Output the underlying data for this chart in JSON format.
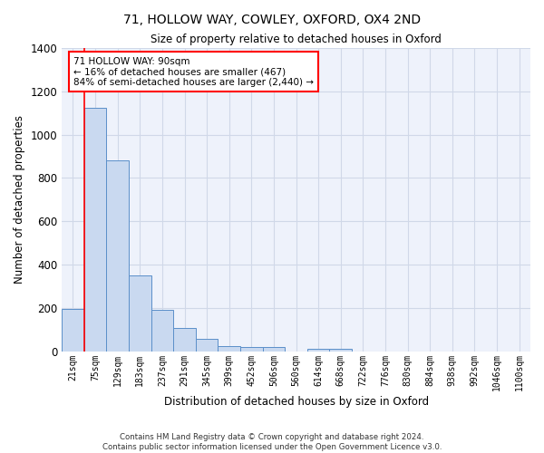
{
  "title1": "71, HOLLOW WAY, COWLEY, OXFORD, OX4 2ND",
  "title2": "Size of property relative to detached houses in Oxford",
  "xlabel": "Distribution of detached houses by size in Oxford",
  "ylabel": "Number of detached properties",
  "categories": [
    "21sqm",
    "75sqm",
    "129sqm",
    "183sqm",
    "237sqm",
    "291sqm",
    "345sqm",
    "399sqm",
    "452sqm",
    "506sqm",
    "560sqm",
    "614sqm",
    "668sqm",
    "722sqm",
    "776sqm",
    "830sqm",
    "884sqm",
    "938sqm",
    "992sqm",
    "1046sqm",
    "1100sqm"
  ],
  "values": [
    195,
    1125,
    880,
    350,
    190,
    105,
    55,
    22,
    20,
    18,
    0,
    12,
    12,
    0,
    0,
    0,
    0,
    0,
    0,
    0,
    0
  ],
  "bar_color": "#c9d9f0",
  "bar_edge_color": "#5b8fc9",
  "grid_color": "#d0d8e8",
  "bg_color": "#eef2fb",
  "red_line_x": 0.5,
  "annotation_text": "71 HOLLOW WAY: 90sqm\n← 16% of detached houses are smaller (467)\n84% of semi-detached houses are larger (2,440) →",
  "annotation_box_color": "white",
  "annotation_box_edge": "red",
  "ylim": [
    0,
    1400
  ],
  "yticks": [
    0,
    200,
    400,
    600,
    800,
    1000,
    1200,
    1400
  ],
  "footer1": "Contains HM Land Registry data © Crown copyright and database right 2024.",
  "footer2": "Contains public sector information licensed under the Open Government Licence v3.0."
}
